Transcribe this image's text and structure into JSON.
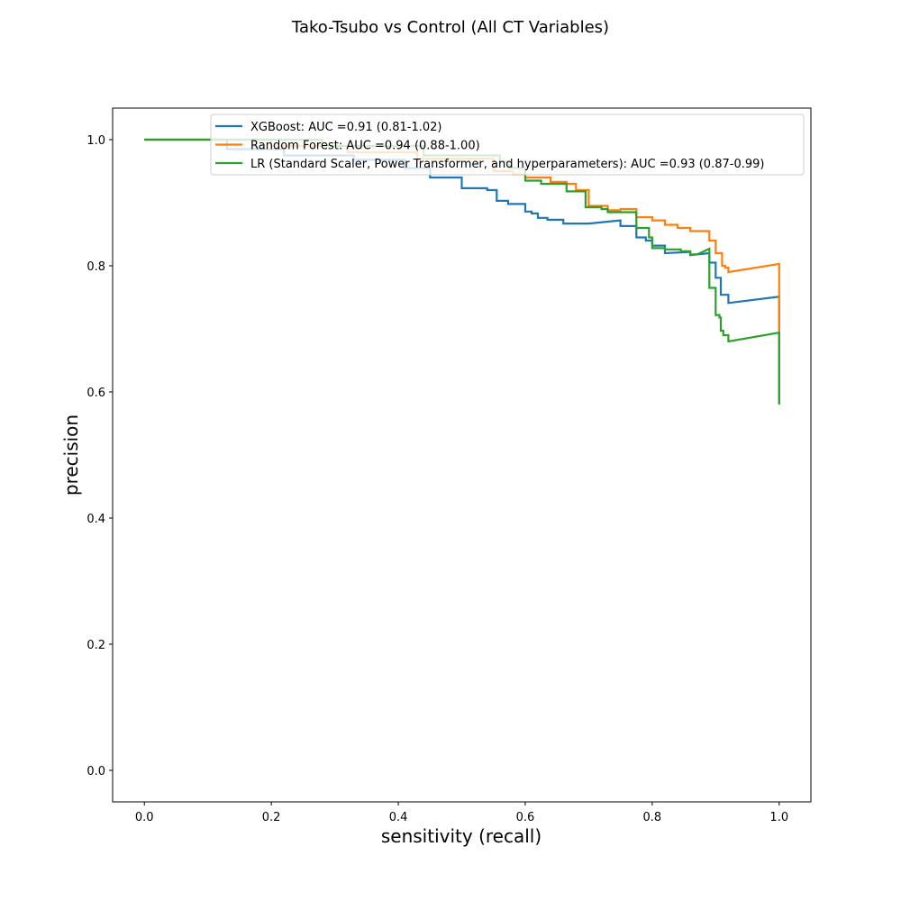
{
  "chart_data": {
    "type": "line",
    "title": "Tako-Tsubo vs Control (All CT Variables)",
    "xlabel": "sensitivity (recall)",
    "ylabel": "precision",
    "xlim": [
      -0.05,
      1.05
    ],
    "ylim": [
      -0.05,
      1.05
    ],
    "x_ticks": [
      "0.0",
      "0.2",
      "0.4",
      "0.6",
      "0.8",
      "1.0"
    ],
    "y_ticks": [
      "0.0",
      "0.2",
      "0.4",
      "0.6",
      "0.8",
      "1.0"
    ],
    "grid": false,
    "legend_position": "top-right",
    "series": [
      {
        "name": "XGBoost: AUC =0.91 (0.81-1.02)",
        "color": "#1f77b4",
        "points": [
          [
            0.0,
            1.0
          ],
          [
            0.13,
            1.0
          ],
          [
            0.13,
            0.985
          ],
          [
            0.22,
            0.985
          ],
          [
            0.22,
            0.975
          ],
          [
            0.33,
            0.975
          ],
          [
            0.33,
            0.968
          ],
          [
            0.41,
            0.968
          ],
          [
            0.41,
            0.955
          ],
          [
            0.45,
            0.955
          ],
          [
            0.45,
            0.94
          ],
          [
            0.5,
            0.94
          ],
          [
            0.5,
            0.923
          ],
          [
            0.54,
            0.923
          ],
          [
            0.54,
            0.92
          ],
          [
            0.555,
            0.92
          ],
          [
            0.555,
            0.903
          ],
          [
            0.573,
            0.903
          ],
          [
            0.573,
            0.898
          ],
          [
            0.6,
            0.898
          ],
          [
            0.6,
            0.886
          ],
          [
            0.61,
            0.886
          ],
          [
            0.61,
            0.883
          ],
          [
            0.62,
            0.883
          ],
          [
            0.62,
            0.876
          ],
          [
            0.635,
            0.876
          ],
          [
            0.635,
            0.873
          ],
          [
            0.66,
            0.873
          ],
          [
            0.66,
            0.867
          ],
          [
            0.7,
            0.867
          ],
          [
            0.7,
            0.867
          ],
          [
            0.75,
            0.872
          ],
          [
            0.75,
            0.863
          ],
          [
            0.775,
            0.863
          ],
          [
            0.775,
            0.845
          ],
          [
            0.79,
            0.845
          ],
          [
            0.79,
            0.84
          ],
          [
            0.8,
            0.84
          ],
          [
            0.8,
            0.832
          ],
          [
            0.82,
            0.832
          ],
          [
            0.82,
            0.82
          ],
          [
            0.86,
            0.822
          ],
          [
            0.86,
            0.817
          ],
          [
            0.89,
            0.82
          ],
          [
            0.89,
            0.805
          ],
          [
            0.9,
            0.805
          ],
          [
            0.9,
            0.781
          ],
          [
            0.908,
            0.781
          ],
          [
            0.908,
            0.754
          ],
          [
            0.92,
            0.754
          ],
          [
            0.92,
            0.741
          ],
          [
            1.0,
            0.751
          ],
          [
            1.0,
            0.582
          ]
        ]
      },
      {
        "name": "Random Forest: AUC =0.94 (0.88-1.00)",
        "color": "#ff7f0e",
        "points": [
          [
            0.0,
            1.0
          ],
          [
            0.2,
            1.0
          ],
          [
            0.2,
            0.99
          ],
          [
            0.32,
            0.99
          ],
          [
            0.32,
            0.98
          ],
          [
            0.43,
            0.98
          ],
          [
            0.43,
            0.97
          ],
          [
            0.55,
            0.97
          ],
          [
            0.55,
            0.95
          ],
          [
            0.58,
            0.95
          ],
          [
            0.58,
            0.945
          ],
          [
            0.6,
            0.945
          ],
          [
            0.6,
            0.94
          ],
          [
            0.64,
            0.94
          ],
          [
            0.64,
            0.933
          ],
          [
            0.665,
            0.933
          ],
          [
            0.665,
            0.93
          ],
          [
            0.68,
            0.93
          ],
          [
            0.68,
            0.92
          ],
          [
            0.7,
            0.92
          ],
          [
            0.7,
            0.895
          ],
          [
            0.73,
            0.895
          ],
          [
            0.73,
            0.888
          ],
          [
            0.75,
            0.888
          ],
          [
            0.75,
            0.89
          ],
          [
            0.775,
            0.89
          ],
          [
            0.775,
            0.877
          ],
          [
            0.8,
            0.877
          ],
          [
            0.8,
            0.872
          ],
          [
            0.82,
            0.872
          ],
          [
            0.82,
            0.865
          ],
          [
            0.84,
            0.865
          ],
          [
            0.84,
            0.86
          ],
          [
            0.86,
            0.86
          ],
          [
            0.86,
            0.855
          ],
          [
            0.89,
            0.855
          ],
          [
            0.89,
            0.84
          ],
          [
            0.9,
            0.84
          ],
          [
            0.9,
            0.82
          ],
          [
            0.91,
            0.82
          ],
          [
            0.91,
            0.8
          ],
          [
            0.915,
            0.8
          ],
          [
            0.915,
            0.797
          ],
          [
            0.92,
            0.797
          ],
          [
            0.92,
            0.79
          ],
          [
            1.0,
            0.803
          ],
          [
            1.0,
            0.582
          ]
        ]
      },
      {
        "name": "LR (Standard Scaler, Power Transformer, and hyperparameters): AUC =0.93 (0.87-0.99)",
        "color": "#2ca02c",
        "points": [
          [
            0.0,
            1.0
          ],
          [
            0.28,
            1.0
          ],
          [
            0.28,
            0.99
          ],
          [
            0.44,
            0.99
          ],
          [
            0.44,
            0.975
          ],
          [
            0.56,
            0.975
          ],
          [
            0.56,
            0.965
          ],
          [
            0.575,
            0.965
          ],
          [
            0.575,
            0.955
          ],
          [
            0.6,
            0.955
          ],
          [
            0.6,
            0.935
          ],
          [
            0.625,
            0.935
          ],
          [
            0.625,
            0.93
          ],
          [
            0.665,
            0.93
          ],
          [
            0.665,
            0.918
          ],
          [
            0.695,
            0.918
          ],
          [
            0.695,
            0.893
          ],
          [
            0.72,
            0.893
          ],
          [
            0.72,
            0.89
          ],
          [
            0.73,
            0.89
          ],
          [
            0.73,
            0.885
          ],
          [
            0.775,
            0.885
          ],
          [
            0.775,
            0.86
          ],
          [
            0.795,
            0.86
          ],
          [
            0.795,
            0.845
          ],
          [
            0.8,
            0.845
          ],
          [
            0.8,
            0.828
          ],
          [
            0.82,
            0.828
          ],
          [
            0.82,
            0.826
          ],
          [
            0.845,
            0.826
          ],
          [
            0.845,
            0.823
          ],
          [
            0.86,
            0.823
          ],
          [
            0.86,
            0.818
          ],
          [
            0.87,
            0.818
          ],
          [
            0.875,
            0.82
          ],
          [
            0.89,
            0.827
          ],
          [
            0.89,
            0.765
          ],
          [
            0.9,
            0.765
          ],
          [
            0.9,
            0.722
          ],
          [
            0.906,
            0.722
          ],
          [
            0.906,
            0.718
          ],
          [
            0.908,
            0.718
          ],
          [
            0.908,
            0.697
          ],
          [
            0.912,
            0.697
          ],
          [
            0.912,
            0.69
          ],
          [
            0.92,
            0.69
          ],
          [
            0.92,
            0.68
          ],
          [
            1.0,
            0.694
          ],
          [
            1.0,
            0.58
          ]
        ]
      }
    ]
  }
}
